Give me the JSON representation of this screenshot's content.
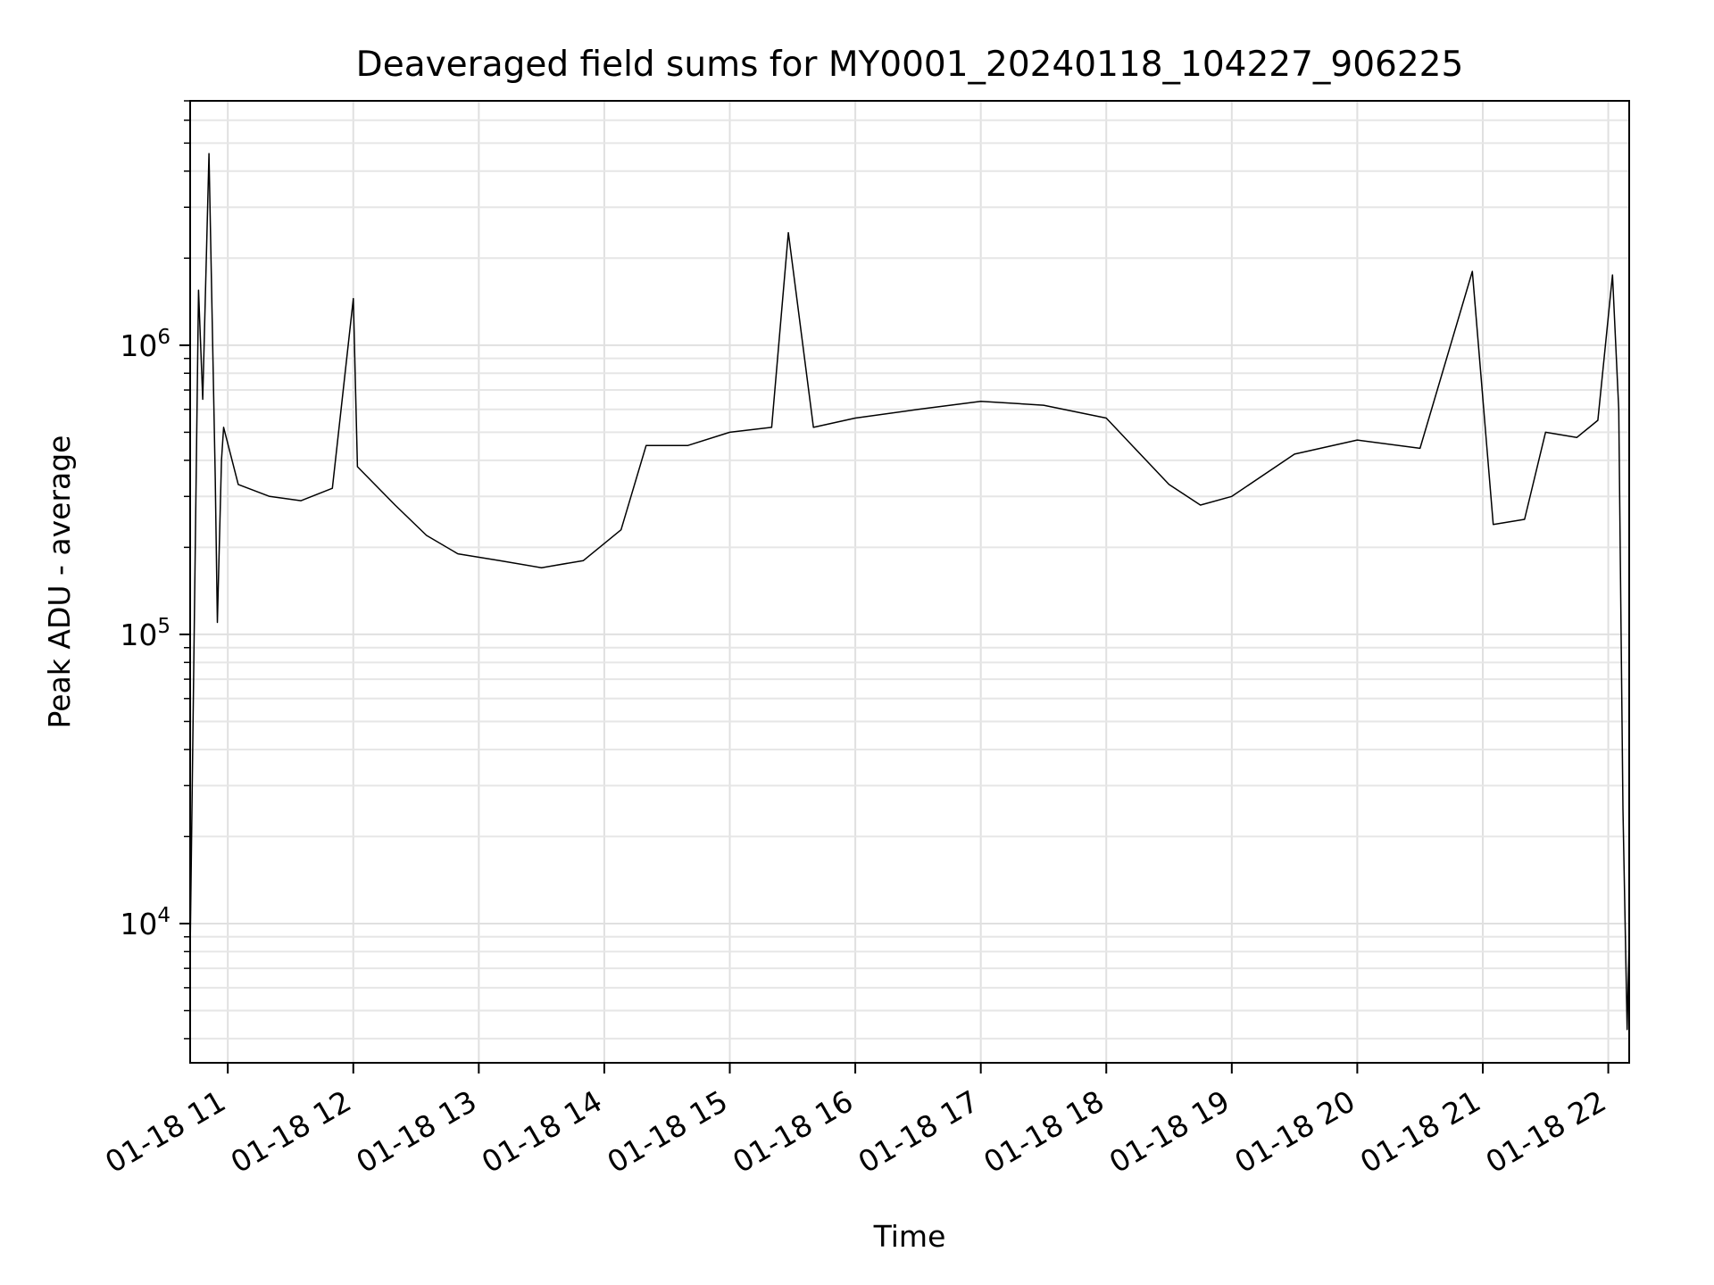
{
  "chart_data": {
    "type": "line",
    "title": "Deaveraged field sums for MY0001_20240118_104227_906225",
    "xlabel": "Time",
    "ylabel": "Peak ADU - average",
    "y_scale": "log",
    "ylim": [
      3300,
      7000000
    ],
    "xlim": [
      "2024-01-18 10:42",
      "2024-01-18 22:10"
    ],
    "grid": true,
    "x_ticks": [
      {
        "value": "2024-01-18 11:00",
        "label": "01-18 11"
      },
      {
        "value": "2024-01-18 12:00",
        "label": "01-18 12"
      },
      {
        "value": "2024-01-18 13:00",
        "label": "01-18 13"
      },
      {
        "value": "2024-01-18 14:00",
        "label": "01-18 14"
      },
      {
        "value": "2024-01-18 15:00",
        "label": "01-18 15"
      },
      {
        "value": "2024-01-18 16:00",
        "label": "01-18 16"
      },
      {
        "value": "2024-01-18 17:00",
        "label": "01-18 17"
      },
      {
        "value": "2024-01-18 18:00",
        "label": "01-18 18"
      },
      {
        "value": "2024-01-18 19:00",
        "label": "01-18 19"
      },
      {
        "value": "2024-01-18 20:00",
        "label": "01-18 20"
      },
      {
        "value": "2024-01-18 21:00",
        "label": "01-18 21"
      },
      {
        "value": "2024-01-18 22:00",
        "label": "01-18 22"
      }
    ],
    "y_ticks": [
      {
        "value": 10000,
        "base": "10",
        "exp": "4"
      },
      {
        "value": 100000,
        "base": "10",
        "exp": "5"
      },
      {
        "value": 1000000,
        "base": "10",
        "exp": "6"
      }
    ],
    "series": [
      {
        "color": "#000000",
        "x": [
          "2024-01-18 10:42",
          "2024-01-18 10:46",
          "2024-01-18 10:48",
          "2024-01-18 10:51",
          "2024-01-18 10:54",
          "2024-01-18 10:55",
          "2024-01-18 10:57",
          "2024-01-18 10:58",
          "2024-01-18 11:05",
          "2024-01-18 11:20",
          "2024-01-18 11:35",
          "2024-01-18 11:50",
          "2024-01-18 12:00",
          "2024-01-18 12:02",
          "2024-01-18 12:20",
          "2024-01-18 12:35",
          "2024-01-18 12:50",
          "2024-01-18 13:10",
          "2024-01-18 13:30",
          "2024-01-18 13:50",
          "2024-01-18 14:08",
          "2024-01-18 14:20",
          "2024-01-18 14:40",
          "2024-01-18 15:00",
          "2024-01-18 15:20",
          "2024-01-18 15:28",
          "2024-01-18 15:40",
          "2024-01-18 16:00",
          "2024-01-18 16:30",
          "2024-01-18 17:00",
          "2024-01-18 17:30",
          "2024-01-18 18:00",
          "2024-01-18 18:30",
          "2024-01-18 18:45",
          "2024-01-18 19:00",
          "2024-01-18 19:30",
          "2024-01-18 20:00",
          "2024-01-18 20:30",
          "2024-01-18 20:55",
          "2024-01-18 21:05",
          "2024-01-18 21:20",
          "2024-01-18 21:30",
          "2024-01-18 21:45",
          "2024-01-18 21:55",
          "2024-01-18 22:02",
          "2024-01-18 22:05",
          "2024-01-18 22:07",
          "2024-01-18 22:09",
          "2024-01-18 22:10"
        ],
        "y": [
          8000,
          1550000,
          650000,
          4600000,
          350000,
          110000,
          400000,
          520000,
          330000,
          300000,
          290000,
          320000,
          1450000,
          380000,
          280000,
          220000,
          190000,
          180000,
          170000,
          180000,
          230000,
          450000,
          450000,
          500000,
          520000,
          2450000,
          520000,
          560000,
          600000,
          640000,
          620000,
          560000,
          330000,
          280000,
          300000,
          420000,
          470000,
          440000,
          1800000,
          240000,
          250000,
          500000,
          480000,
          550000,
          1750000,
          600000,
          25000,
          4300,
          9000
        ]
      }
    ]
  }
}
